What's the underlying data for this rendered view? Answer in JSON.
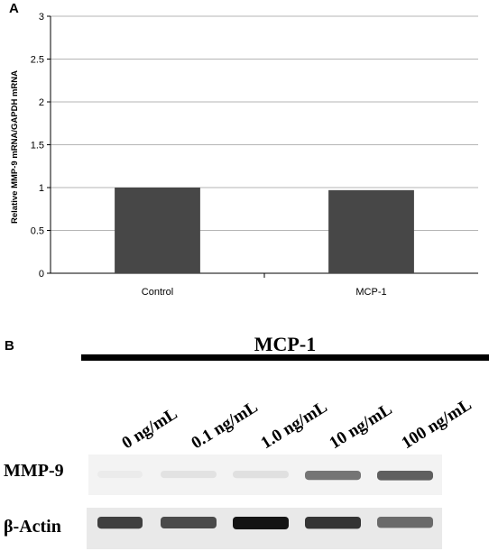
{
  "panel_a": {
    "label": "A",
    "chart_data": {
      "type": "bar",
      "categories": [
        "Control",
        "MCP-1"
      ],
      "values": [
        1.0,
        0.97
      ],
      "title": "",
      "xlabel": "",
      "ylabel": "Relative MMP-9 mRNA/GAPDH mRNA",
      "ylim": [
        0,
        3
      ],
      "yticks": [
        0,
        0.5,
        1,
        1.5,
        2,
        2.5,
        3
      ],
      "ytick_labels": [
        "0",
        "0.5",
        "1",
        "1.5",
        "2",
        "2.5",
        "3"
      ],
      "grid": true,
      "bar_color": "#474747",
      "grid_color": "#b5b5b5"
    }
  },
  "panel_b": {
    "label": "B",
    "treatment_label": "MCP-1",
    "lane_labels": [
      "0 ng/mL",
      "0.1 ng/mL",
      "1.0 ng/mL",
      "10 ng/mL",
      "100 ng/mL"
    ],
    "blots": [
      {
        "name": "MMP-9",
        "intensities": [
          0.0,
          0.04,
          0.05,
          0.55,
          0.65
        ]
      },
      {
        "name": "β-Actin",
        "intensities": [
          0.8,
          0.75,
          1.0,
          0.85,
          0.6
        ]
      }
    ]
  }
}
